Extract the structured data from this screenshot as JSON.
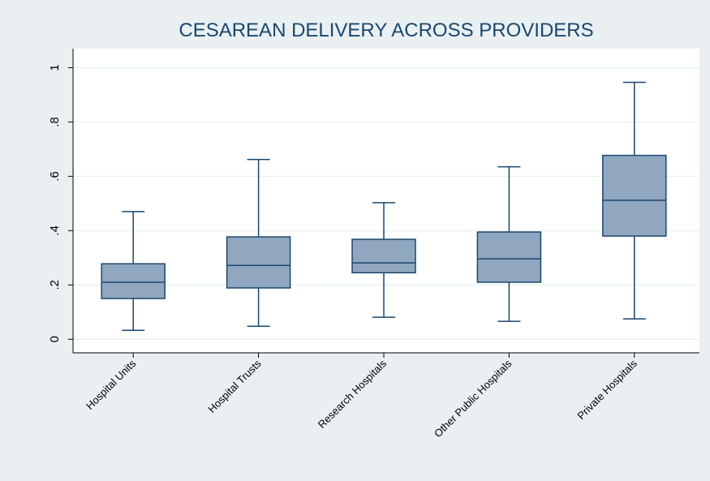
{
  "chart_data": {
    "type": "box",
    "title": "CESAREAN DELIVERY ACROSS PROVIDERS",
    "categories": [
      "Hospital Units",
      "Hospital Trusts",
      "Research Hospitals",
      "Other Public Hospitals",
      "Private Hospitals"
    ],
    "boxes": [
      {
        "min": 0.033,
        "q1": 0.15,
        "median": 0.21,
        "q3": 0.278,
        "max": 0.47
      },
      {
        "min": 0.048,
        "q1": 0.189,
        "median": 0.272,
        "q3": 0.377,
        "max": 0.662
      },
      {
        "min": 0.081,
        "q1": 0.245,
        "median": 0.281,
        "q3": 0.368,
        "max": 0.503
      },
      {
        "min": 0.066,
        "q1": 0.21,
        "median": 0.296,
        "q3": 0.395,
        "max": 0.635
      },
      {
        "min": 0.075,
        "q1": 0.38,
        "median": 0.512,
        "q3": 0.677,
        "max": 0.946
      }
    ],
    "color": "#90a7bf",
    "line_color": "#1a476f",
    "ylim": [
      -0.05,
      1.07
    ],
    "yticks": [
      0,
      {
        "value": 0.2,
        "label": ".2"
      },
      {
        "value": 0.4,
        "label": ".4"
      },
      {
        "value": 0.6,
        "label": ".6"
      },
      {
        "value": 0.8,
        "label": ".8"
      },
      1
    ],
    "grid": true
  }
}
